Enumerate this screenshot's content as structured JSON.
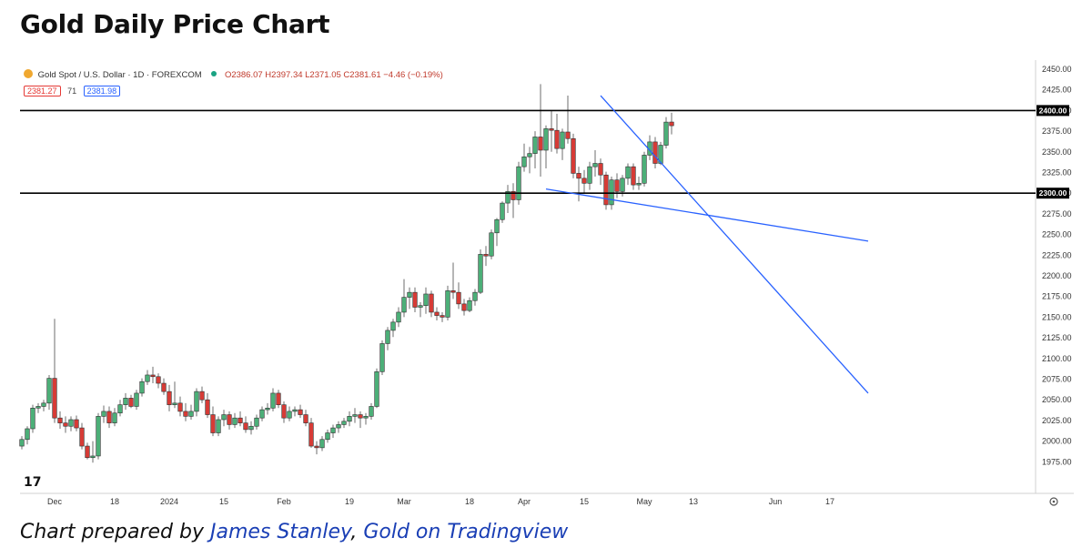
{
  "page": {
    "title": "Gold Daily Price Chart",
    "caption_prefix": "Chart prepared by ",
    "caption_author": "James Stanley",
    "caption_sep": ", ",
    "caption_source": "Gold on Tradingview"
  },
  "legend": {
    "symbol_name": "Gold Spot / U.S. Dollar · 1D · FOREXCOM",
    "ohlc": "O2386.07 H2397.34 L2371.05 C2381.61 −4.46 (−0.19%)",
    "bid": "2381.27",
    "spread": "71",
    "ask": "2381.98",
    "logo_text": "17"
  },
  "colors": {
    "up": "#26a69a",
    "up_fill": "#4caf78",
    "down": "#ef5350",
    "down_fill": "#d63b36",
    "level_line": "#000000",
    "trendline": "#2962ff",
    "axis_text": "#333333"
  },
  "icons": {
    "symbol": "gold-coin-icon",
    "status": "market-open-dot-icon",
    "logo": "tradingview-logo-icon",
    "settings": "gear-icon"
  },
  "chart_data": {
    "type": "candlestick",
    "title": "Gold Daily Price Chart",
    "ylim": [
      1950,
      2450
    ],
    "y_ticks": [
      1975,
      2000,
      2025,
      2050,
      2075,
      2100,
      2125,
      2150,
      2175,
      2200,
      2225,
      2250,
      2275,
      2300,
      2325,
      2350,
      2375,
      2400,
      2425,
      2450
    ],
    "y_tick_labels": [
      "1975.00",
      "2000.00",
      "2025.00",
      "2050.00",
      "2075.00",
      "2100.00",
      "2125.00",
      "2150.00",
      "2175.00",
      "2200.00",
      "2225.00",
      "2250.00",
      "2275.00",
      "2300.00",
      "2325.00",
      "2350.00",
      "2375.00",
      "2400.00",
      "2425.00",
      "2450.00"
    ],
    "x_tick_labels": [
      "Dec",
      "18",
      "2024",
      "15",
      "Feb",
      "19",
      "Mar",
      "18",
      "Apr",
      "15",
      "May",
      "13",
      "Jun",
      "17"
    ],
    "x_tick_index": [
      6,
      17,
      27,
      37,
      48,
      60,
      70,
      82,
      92,
      103,
      114,
      123,
      138,
      148
    ],
    "horizontal_levels": [
      {
        "label": "2400.00",
        "value": 2400
      },
      {
        "label": "2300.00",
        "value": 2300
      }
    ],
    "trendlines": [
      {
        "from": [
          106,
          2418
        ],
        "to": [
          155,
          2058
        ]
      },
      {
        "from": [
          96,
          2305
        ],
        "to": [
          155,
          2242
        ]
      }
    ],
    "candles": [
      [
        1994,
        2006,
        1990,
        2002
      ],
      [
        2002,
        2018,
        1996,
        2015
      ],
      [
        2015,
        2044,
        2010,
        2040
      ],
      [
        2040,
        2046,
        2034,
        2042
      ],
      [
        2042,
        2050,
        2036,
        2046
      ],
      [
        2046,
        2080,
        2038,
        2076
      ],
      [
        2076,
        2148,
        2022,
        2028
      ],
      [
        2028,
        2036,
        2015,
        2022
      ],
      [
        2022,
        2030,
        2010,
        2018
      ],
      [
        2018,
        2030,
        2012,
        2026
      ],
      [
        2026,
        2031,
        2012,
        2016
      ],
      [
        2016,
        2022,
        1990,
        1994
      ],
      [
        1994,
        1998,
        1978,
        1980
      ],
      [
        1980,
        2000,
        1974,
        1982
      ],
      [
        1982,
        2034,
        1978,
        2030
      ],
      [
        2030,
        2043,
        2022,
        2036
      ],
      [
        2036,
        2042,
        2016,
        2022
      ],
      [
        2022,
        2040,
        2018,
        2034
      ],
      [
        2034,
        2050,
        2030,
        2044
      ],
      [
        2044,
        2058,
        2038,
        2052
      ],
      [
        2052,
        2056,
        2040,
        2042
      ],
      [
        2042,
        2062,
        2038,
        2058
      ],
      [
        2058,
        2076,
        2054,
        2072
      ],
      [
        2072,
        2086,
        2068,
        2080
      ],
      [
        2080,
        2090,
        2070,
        2078
      ],
      [
        2078,
        2082,
        2064,
        2070
      ],
      [
        2070,
        2076,
        2056,
        2060
      ],
      [
        2060,
        2068,
        2036,
        2044
      ],
      [
        2044,
        2072,
        2040,
        2046
      ],
      [
        2046,
        2054,
        2030,
        2036
      ],
      [
        2036,
        2046,
        2024,
        2030
      ],
      [
        2030,
        2044,
        2026,
        2036
      ],
      [
        2036,
        2064,
        2030,
        2060
      ],
      [
        2060,
        2066,
        2046,
        2050
      ],
      [
        2050,
        2058,
        2028,
        2032
      ],
      [
        2032,
        2042,
        2006,
        2010
      ],
      [
        2010,
        2030,
        2006,
        2026
      ],
      [
        2026,
        2038,
        2018,
        2032
      ],
      [
        2032,
        2036,
        2014,
        2020
      ],
      [
        2020,
        2034,
        2016,
        2028
      ],
      [
        2028,
        2036,
        2018,
        2022
      ],
      [
        2022,
        2030,
        2010,
        2014
      ],
      [
        2014,
        2024,
        2008,
        2018
      ],
      [
        2018,
        2032,
        2014,
        2028
      ],
      [
        2028,
        2042,
        2024,
        2038
      ],
      [
        2038,
        2046,
        2032,
        2040
      ],
      [
        2040,
        2064,
        2036,
        2058
      ],
      [
        2058,
        2062,
        2040,
        2044
      ],
      [
        2044,
        2048,
        2022,
        2028
      ],
      [
        2028,
        2042,
        2024,
        2036
      ],
      [
        2036,
        2042,
        2030,
        2038
      ],
      [
        2038,
        2044,
        2028,
        2032
      ],
      [
        2032,
        2038,
        2018,
        2022
      ],
      [
        2022,
        2028,
        1992,
        1994
      ],
      [
        1994,
        2000,
        1984,
        1992
      ],
      [
        1992,
        2006,
        1988,
        2002
      ],
      [
        2002,
        2014,
        1998,
        2010
      ],
      [
        2010,
        2020,
        2004,
        2016
      ],
      [
        2016,
        2024,
        2010,
        2020
      ],
      [
        2020,
        2028,
        2016,
        2024
      ],
      [
        2024,
        2036,
        2018,
        2030
      ],
      [
        2030,
        2040,
        2022,
        2032
      ],
      [
        2032,
        2036,
        2016,
        2028
      ],
      [
        2028,
        2034,
        2020,
        2030
      ],
      [
        2030,
        2046,
        2026,
        2042
      ],
      [
        2042,
        2088,
        2040,
        2084
      ],
      [
        2084,
        2122,
        2080,
        2118
      ],
      [
        2118,
        2138,
        2110,
        2134
      ],
      [
        2134,
        2148,
        2126,
        2144
      ],
      [
        2144,
        2162,
        2138,
        2156
      ],
      [
        2156,
        2196,
        2150,
        2174
      ],
      [
        2174,
        2186,
        2160,
        2180
      ],
      [
        2180,
        2186,
        2156,
        2162
      ],
      [
        2162,
        2168,
        2150,
        2164
      ],
      [
        2164,
        2186,
        2154,
        2178
      ],
      [
        2178,
        2182,
        2150,
        2156
      ],
      [
        2156,
        2162,
        2146,
        2152
      ],
      [
        2152,
        2156,
        2144,
        2150
      ],
      [
        2150,
        2188,
        2146,
        2182
      ],
      [
        2182,
        2216,
        2172,
        2180
      ],
      [
        2180,
        2192,
        2160,
        2166
      ],
      [
        2166,
        2172,
        2152,
        2158
      ],
      [
        2158,
        2174,
        2156,
        2170
      ],
      [
        2170,
        2184,
        2164,
        2180
      ],
      [
        2180,
        2232,
        2178,
        2226
      ],
      [
        2226,
        2236,
        2212,
        2224
      ],
      [
        2224,
        2256,
        2220,
        2252
      ],
      [
        2252,
        2270,
        2236,
        2268
      ],
      [
        2268,
        2290,
        2264,
        2288
      ],
      [
        2288,
        2310,
        2276,
        2302
      ],
      [
        2302,
        2312,
        2270,
        2292
      ],
      [
        2292,
        2338,
        2286,
        2332
      ],
      [
        2332,
        2360,
        2326,
        2344
      ],
      [
        2344,
        2356,
        2324,
        2348
      ],
      [
        2348,
        2375,
        2330,
        2368
      ],
      [
        2368,
        2432,
        2320,
        2352
      ],
      [
        2352,
        2382,
        2330,
        2378
      ],
      [
        2378,
        2400,
        2350,
        2376
      ],
      [
        2376,
        2396,
        2348,
        2354
      ],
      [
        2354,
        2378,
        2340,
        2374
      ],
      [
        2374,
        2418,
        2360,
        2366
      ],
      [
        2366,
        2372,
        2318,
        2324
      ],
      [
        2324,
        2332,
        2290,
        2318
      ],
      [
        2318,
        2328,
        2300,
        2312
      ],
      [
        2312,
        2338,
        2304,
        2332
      ],
      [
        2332,
        2352,
        2320,
        2336
      ],
      [
        2336,
        2342,
        2310,
        2322
      ],
      [
        2322,
        2326,
        2280,
        2286
      ],
      [
        2286,
        2320,
        2280,
        2316
      ],
      [
        2316,
        2324,
        2294,
        2302
      ],
      [
        2302,
        2322,
        2296,
        2318
      ],
      [
        2318,
        2336,
        2310,
        2332
      ],
      [
        2332,
        2336,
        2304,
        2310
      ],
      [
        2310,
        2320,
        2304,
        2312
      ],
      [
        2312,
        2350,
        2308,
        2346
      ],
      [
        2346,
        2370,
        2340,
        2362
      ],
      [
        2362,
        2368,
        2330,
        2336
      ],
      [
        2336,
        2362,
        2334,
        2358
      ],
      [
        2358,
        2392,
        2354,
        2386
      ],
      [
        2386.07,
        2397.34,
        2371.05,
        2381.61
      ]
    ]
  }
}
